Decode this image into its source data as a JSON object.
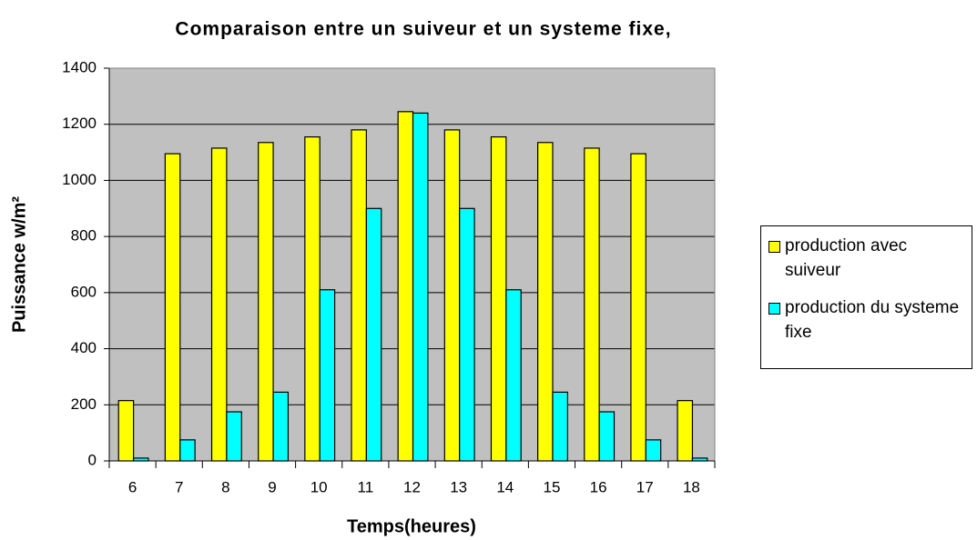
{
  "chart_data": {
    "type": "bar",
    "title": "Comparaison entre un suiveur et un systeme fixe,",
    "x_label": "Temps(heures)",
    "y_label": "Puissance w/m²",
    "categories": [
      "6",
      "7",
      "8",
      "9",
      "10",
      "11",
      "12",
      "13",
      "14",
      "15",
      "16",
      "17",
      "18"
    ],
    "series": [
      {
        "name": "production avec suiveur",
        "color": "#ffff00",
        "values": [
          215,
          1095,
          1115,
          1135,
          1155,
          1180,
          1245,
          1180,
          1155,
          1135,
          1115,
          1095,
          215
        ]
      },
      {
        "name": "production du systeme fixe",
        "color": "#00ffff",
        "values": [
          10,
          75,
          175,
          245,
          610,
          900,
          1240,
          900,
          610,
          245,
          175,
          75,
          10
        ]
      }
    ],
    "ylim": [
      0,
      1400
    ],
    "yticks": [
      0,
      200,
      400,
      600,
      800,
      1000,
      1200,
      1400
    ],
    "grid": true,
    "legend": "right"
  }
}
